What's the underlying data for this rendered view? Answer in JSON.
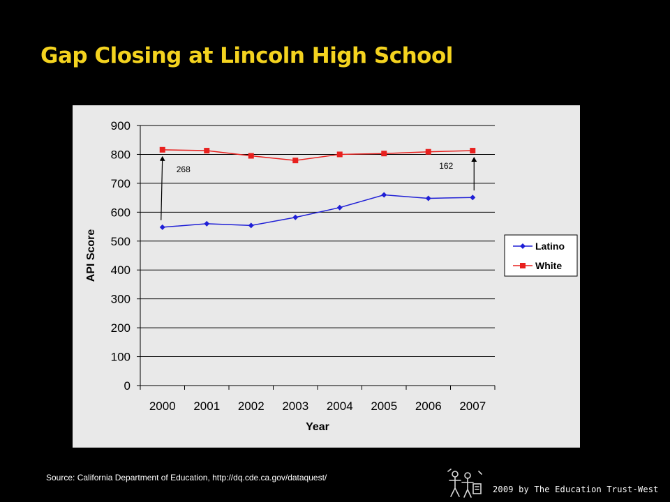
{
  "slide": {
    "title": "Gap Closing at Lincoln High School",
    "source": "Source: California Department of Education, http://dq.cde.ca.gov/dataquest/",
    "copyright": "2009 by The Education Trust-West"
  },
  "chart_data": {
    "type": "line",
    "x": [
      "2000",
      "2001",
      "2002",
      "2003",
      "2004",
      "2005",
      "2006",
      "2007"
    ],
    "xlabel": "Year",
    "ylabel": "API Score",
    "ylim": [
      0,
      900
    ],
    "yticks": [
      0,
      100,
      200,
      300,
      400,
      500,
      600,
      700,
      800,
      900
    ],
    "grid": true,
    "legend": "right",
    "series": [
      {
        "name": "Latino",
        "color": "#1f1fd6",
        "marker": "diamond",
        "values": [
          548,
          560,
          554,
          582,
          616,
          660,
          648,
          651
        ]
      },
      {
        "name": "White",
        "color": "#e8201e",
        "marker": "square",
        "values": [
          816,
          813,
          795,
          779,
          800,
          803,
          809,
          813
        ]
      }
    ],
    "annotations": [
      {
        "text": "268",
        "x": "2000",
        "from": 548,
        "to": 816
      },
      {
        "text": "162",
        "x": "2007",
        "from": 651,
        "to": 813
      }
    ]
  }
}
